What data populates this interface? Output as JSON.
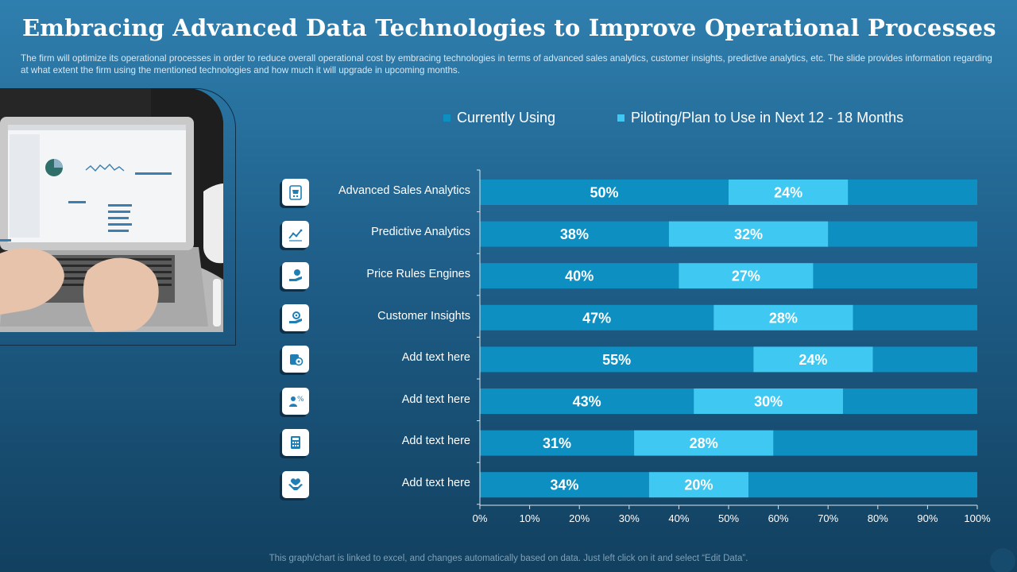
{
  "page": {
    "title": "Embracing Advanced Data Technologies to Improve Operational Processes",
    "description": "The firm will optimize its operational processes in order to reduce overall operational cost by embracing technologies in terms of advanced sales analytics, customer insights, predictive analytics, etc. The slide provides information regarding at what extent the firm using the mentioned technologies and how much it will upgrade in upcoming months.",
    "footer": "This graph/chart is linked to excel, and changes automatically based on data. Just left click on it and select “Edit Data”."
  },
  "colors": {
    "currently_using": "#0e8fc2",
    "piloting": "#3fc8f2",
    "remainder": "#0e8fc2",
    "axis": "#d8e6ef"
  },
  "icons": [
    "cart-icon",
    "line-chart-icon",
    "hand-coin-icon",
    "hand-gear-icon",
    "target-icon",
    "percent-people-icon",
    "calculator-icon",
    "hand-heart-icon"
  ],
  "chart_data": {
    "type": "bar",
    "orientation": "horizontal",
    "stacked": true,
    "categories": [
      "Advanced Sales Analytics",
      "Predictive Analytics",
      "Price Rules Engines",
      "Customer Insights",
      "Add text here",
      "Add text here",
      "Add text here",
      "Add text here"
    ],
    "series": [
      {
        "name": "Currently Using",
        "values": [
          50,
          38,
          40,
          47,
          55,
          43,
          31,
          34
        ],
        "labels": [
          "50%",
          "38%",
          "40%",
          "47%",
          "55%",
          "43%",
          "31%",
          "34%"
        ]
      },
      {
        "name": "Piloting/Plan to Use in Next 12 - 18 Months",
        "values": [
          24,
          32,
          27,
          28,
          24,
          30,
          28,
          20
        ],
        "labels": [
          "24%",
          "32%",
          "27%",
          "28%",
          "24%",
          "30%",
          "28%",
          "20%"
        ]
      }
    ],
    "xlim": [
      0,
      100
    ],
    "xticks": [
      0,
      10,
      20,
      30,
      40,
      50,
      60,
      70,
      80,
      90,
      100
    ],
    "xtick_labels": [
      "0%",
      "10%",
      "20%",
      "30%",
      "40%",
      "50%",
      "60%",
      "70%",
      "80%",
      "90%",
      "100%"
    ],
    "legend_position": "top",
    "grid": false
  }
}
